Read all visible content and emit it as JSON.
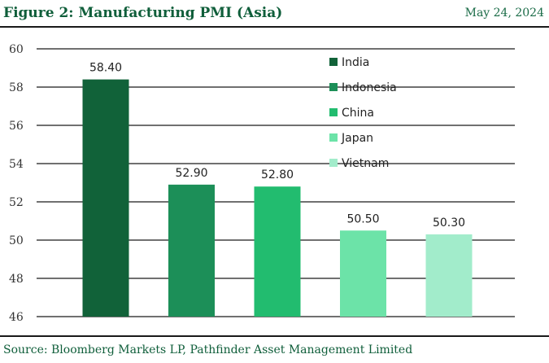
{
  "header": {
    "title": "Figure 2: Manufacturing PMI (Asia)",
    "date": "May 24, 2024"
  },
  "footer": {
    "source": "Source: Bloomberg Markets LP, Pathfinder Asset Management Limited"
  },
  "chart_data": {
    "type": "bar",
    "title": "Figure 2: Manufacturing PMI (Asia)",
    "xlabel": "",
    "ylabel": "",
    "categories": [
      "India",
      "Indonesia",
      "China",
      "Japan",
      "Vietnam"
    ],
    "values": [
      58.4,
      52.9,
      52.8,
      50.5,
      50.3
    ],
    "data_labels": [
      "58.40",
      "52.90",
      "52.80",
      "50.50",
      "50.30"
    ],
    "colors": [
      "#116239",
      "#1c8f58",
      "#22bc6f",
      "#6ce3a8",
      "#a2eccb"
    ],
    "ylim": [
      46,
      60
    ],
    "yticks": [
      46,
      48,
      50,
      52,
      54,
      56,
      58,
      60
    ],
    "grid": true,
    "legend_position": "top-right"
  }
}
